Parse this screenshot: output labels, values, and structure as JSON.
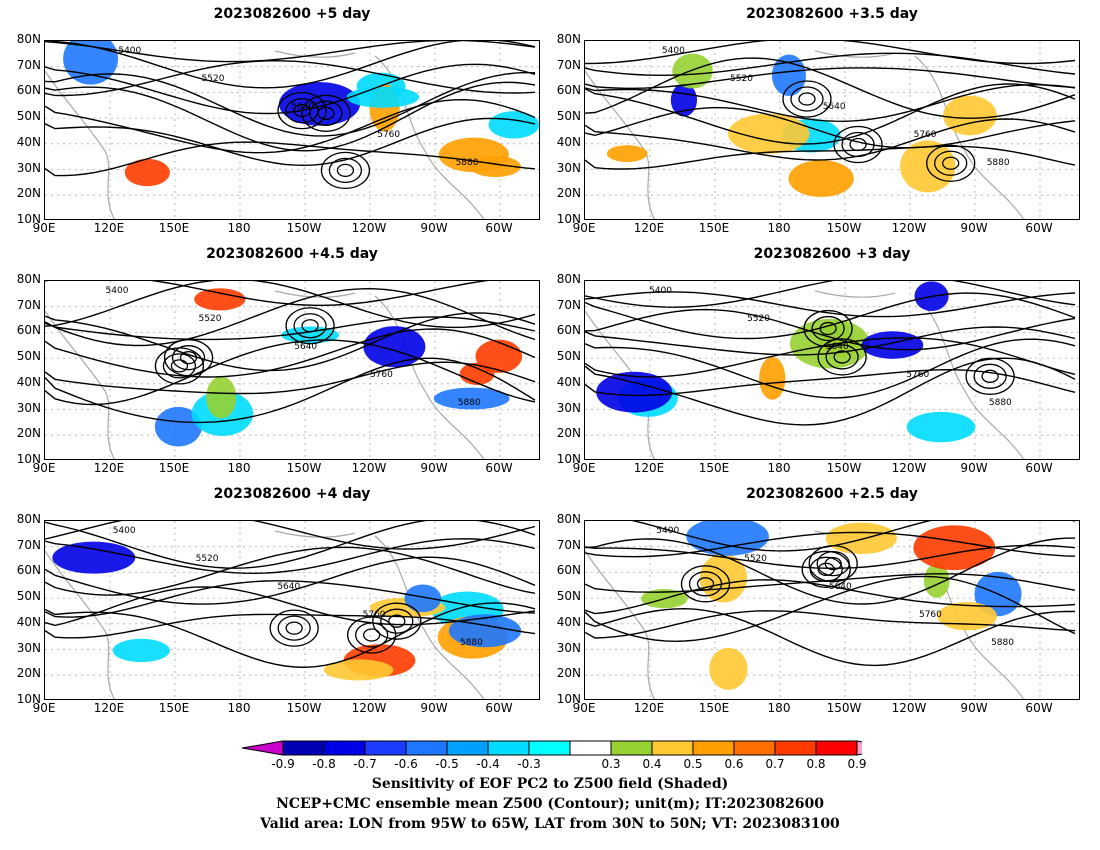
{
  "panels": [
    {
      "title": "2023082600 +5 day"
    },
    {
      "title": "2023082600 +3.5 day"
    },
    {
      "title": "2023082600 +4.5 day"
    },
    {
      "title": "2023082600 +3 day"
    },
    {
      "title": "2023082600 +4 day"
    },
    {
      "title": "2023082600 +2.5 day"
    }
  ],
  "axes": {
    "lat_labels": [
      "80N",
      "70N",
      "60N",
      "50N",
      "40N",
      "30N",
      "20N",
      "10N"
    ],
    "lon_labels": [
      "90E",
      "120E",
      "150E",
      "180",
      "150W",
      "120W",
      "90W",
      "60W"
    ]
  },
  "contour_labels": [
    "5400",
    "5520",
    "5640",
    "5760",
    "5880"
  ],
  "colorbar": {
    "labels": [
      "-0.9",
      "-0.8",
      "-0.7",
      "-0.6",
      "-0.5",
      "-0.4",
      "-0.3",
      "0.3",
      "0.4",
      "0.5",
      "0.6",
      "0.7",
      "0.8",
      "0.9"
    ],
    "colors": [
      "#c800c8",
      "#0000b4",
      "#0000e6",
      "#1e3cff",
      "#1e78ff",
      "#00a0ff",
      "#00dcff",
      "#00ffff",
      "#ffffff",
      "#96d232",
      "#ffc832",
      "#ffa000",
      "#ff6e00",
      "#ff3c00",
      "#ff0000",
      "#ffa0c8"
    ]
  },
  "caption": {
    "line1": "Sensitivity of EOF PC2 to Z500 field (Shaded)",
    "line2": "NCEP+CMC ensemble mean Z500 (Contour); unit(m); IT:2023082600",
    "line3": "Valid area: LON from 95W to 65W, LAT from 30N to 50N; VT: 2023083100"
  }
}
